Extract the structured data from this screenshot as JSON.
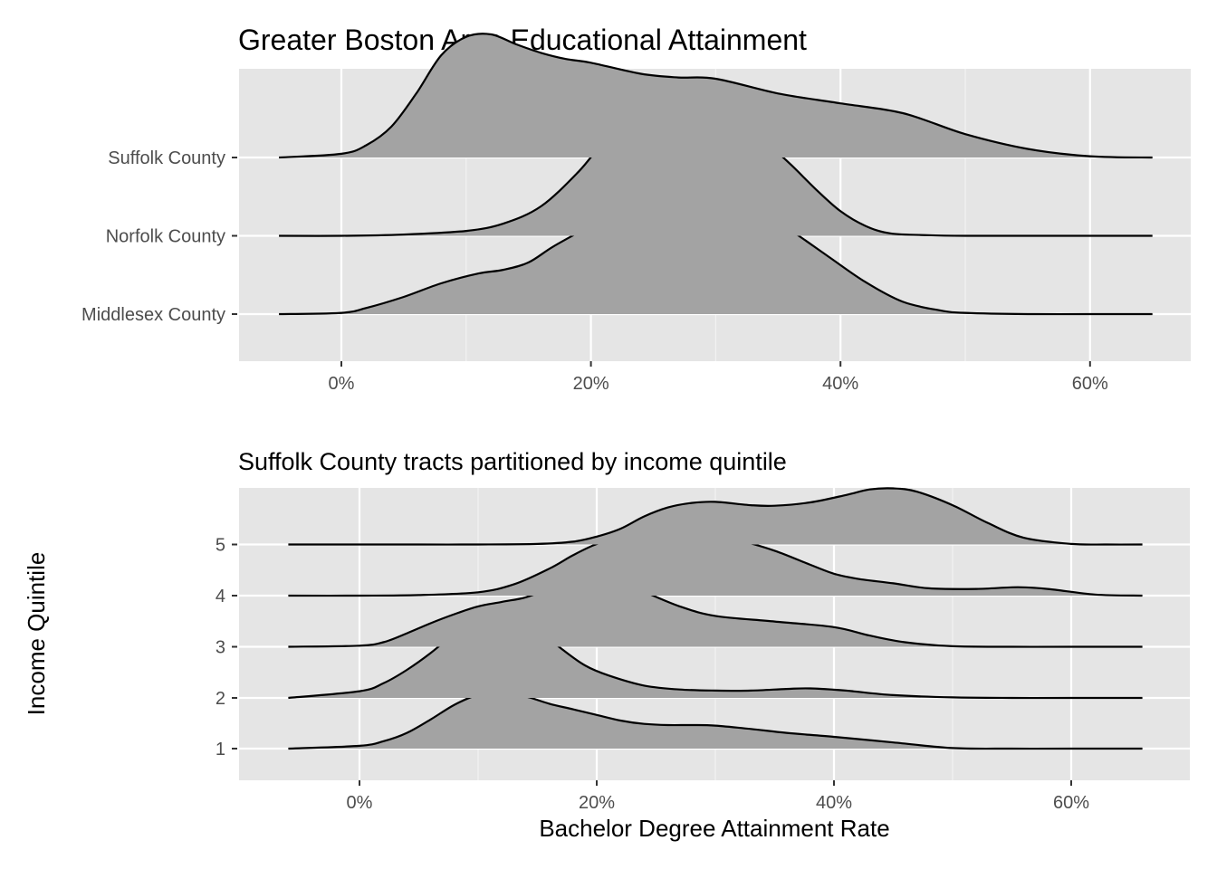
{
  "chart_data": [
    {
      "type": "ridgeline",
      "title": "Greater Boston Area Educational Attainment",
      "xlabel": "",
      "ylabel": "",
      "x_tick_labels": [
        "0%",
        "20%",
        "40%",
        "60%"
      ],
      "x_ticks": [
        0,
        20,
        40,
        60
      ],
      "xlim": [
        -8,
        68
      ],
      "grid": true,
      "background": "#e5e5e5",
      "fill_color": "#a3a3a3",
      "series": [
        {
          "name": "Middlesex County",
          "x": [
            -5,
            0,
            2,
            5,
            8,
            11,
            13,
            15,
            17,
            20,
            23,
            26,
            28,
            30,
            33,
            36,
            39,
            42,
            45,
            48,
            50,
            55,
            60,
            65
          ],
          "y": [
            0,
            0.01,
            0.05,
            0.14,
            0.25,
            0.33,
            0.36,
            0.42,
            0.55,
            0.72,
            0.9,
            0.99,
            1.0,
            0.98,
            0.86,
            0.68,
            0.47,
            0.26,
            0.1,
            0.03,
            0.01,
            0,
            0,
            0
          ]
        },
        {
          "name": "Norfolk County",
          "x": [
            -5,
            0,
            5,
            10,
            13,
            16,
            19,
            21,
            23,
            25,
            26.5,
            28,
            30,
            32,
            34,
            36,
            38,
            40,
            42,
            44,
            47,
            50,
            55,
            60,
            65
          ],
          "y": [
            0,
            0,
            0.01,
            0.04,
            0.1,
            0.24,
            0.52,
            0.76,
            0.93,
            1.02,
            1.05,
            1.03,
            0.96,
            0.88,
            0.76,
            0.58,
            0.38,
            0.2,
            0.08,
            0.02,
            0.005,
            0,
            0,
            0,
            0
          ]
        },
        {
          "name": "Suffolk County",
          "x": [
            -5,
            0,
            2,
            4,
            6,
            8,
            10,
            12,
            14,
            16,
            18,
            20,
            24,
            27,
            30,
            35,
            40,
            45,
            50,
            55,
            60,
            65
          ],
          "y": [
            0,
            0.03,
            0.1,
            0.25,
            0.52,
            0.83,
            0.98,
            1.0,
            0.92,
            0.85,
            0.8,
            0.77,
            0.68,
            0.65,
            0.64,
            0.52,
            0.44,
            0.36,
            0.19,
            0.07,
            0.01,
            0
          ]
        }
      ]
    },
    {
      "type": "ridgeline",
      "title": "Suffolk County tracts partitioned by income quintile",
      "xlabel": "Bachelor Degree Attainment Rate",
      "ylabel": "Income Quintile",
      "x_tick_labels": [
        "0%",
        "20%",
        "40%",
        "60%"
      ],
      "x_ticks": [
        0,
        20,
        40,
        60
      ],
      "xlim": [
        -10,
        70
      ],
      "grid": true,
      "background": "#e5e5e5",
      "fill_color": "#a3a3a3",
      "series": [
        {
          "name": "1",
          "x": [
            -6,
            0,
            2,
            4,
            6,
            8,
            10,
            12,
            14,
            16,
            18,
            20,
            22,
            24,
            26,
            28,
            30,
            33,
            36,
            40,
            45,
            50,
            55,
            60,
            66
          ],
          "y": [
            0,
            0.05,
            0.13,
            0.28,
            0.52,
            0.78,
            0.96,
            1.0,
            0.93,
            0.8,
            0.7,
            0.6,
            0.5,
            0.44,
            0.42,
            0.42,
            0.41,
            0.35,
            0.28,
            0.21,
            0.11,
            0.01,
            0,
            0,
            0
          ]
        },
        {
          "name": "2",
          "x": [
            -6,
            0,
            2,
            4,
            6,
            8,
            10,
            11.5,
            13,
            15,
            17,
            19,
            21,
            24,
            27,
            30,
            33,
            36,
            38,
            41,
            45,
            50,
            55,
            60,
            66
          ],
          "y": [
            0,
            0.12,
            0.26,
            0.5,
            0.8,
            1.15,
            1.48,
            1.6,
            1.52,
            1.22,
            0.88,
            0.58,
            0.4,
            0.22,
            0.15,
            0.13,
            0.13,
            0.16,
            0.17,
            0.13,
            0.05,
            0.01,
            0,
            0,
            0
          ]
        },
        {
          "name": "3",
          "x": [
            -6,
            0,
            2,
            4,
            6,
            8,
            10,
            12,
            14,
            16,
            18,
            20,
            22,
            24,
            27,
            30,
            35,
            40,
            43,
            46,
            50,
            55,
            60,
            66
          ],
          "y": [
            0,
            0.02,
            0.08,
            0.24,
            0.42,
            0.58,
            0.72,
            0.8,
            0.88,
            1.04,
            1.2,
            1.24,
            1.16,
            0.98,
            0.72,
            0.55,
            0.45,
            0.35,
            0.2,
            0.08,
            0.01,
            0,
            0,
            0
          ]
        },
        {
          "name": "4",
          "x": [
            -6,
            0,
            5,
            10,
            13,
            16,
            18,
            20,
            22,
            24,
            26,
            28,
            30,
            32,
            35,
            38,
            40,
            42,
            45,
            48,
            52,
            55.5,
            58,
            62,
            66
          ],
          "y": [
            0,
            0,
            0.01,
            0.06,
            0.2,
            0.48,
            0.72,
            0.92,
            1.02,
            1.05,
            1.04,
            1.03,
            1.02,
            0.98,
            0.8,
            0.55,
            0.39,
            0.3,
            0.22,
            0.13,
            0.12,
            0.15,
            0.12,
            0.02,
            0
          ]
        },
        {
          "name": "5",
          "x": [
            -6,
            0,
            5,
            10,
            15,
            18,
            20,
            22,
            24,
            26,
            28,
            30,
            33,
            35,
            38,
            41,
            43,
            45,
            47,
            50,
            53,
            56,
            60,
            63,
            66
          ],
          "y": [
            0,
            0,
            0,
            0,
            0.01,
            0.05,
            0.14,
            0.28,
            0.5,
            0.66,
            0.74,
            0.76,
            0.7,
            0.69,
            0.75,
            0.88,
            0.98,
            1.0,
            0.94,
            0.7,
            0.38,
            0.12,
            0.01,
            0,
            0
          ]
        }
      ]
    }
  ]
}
